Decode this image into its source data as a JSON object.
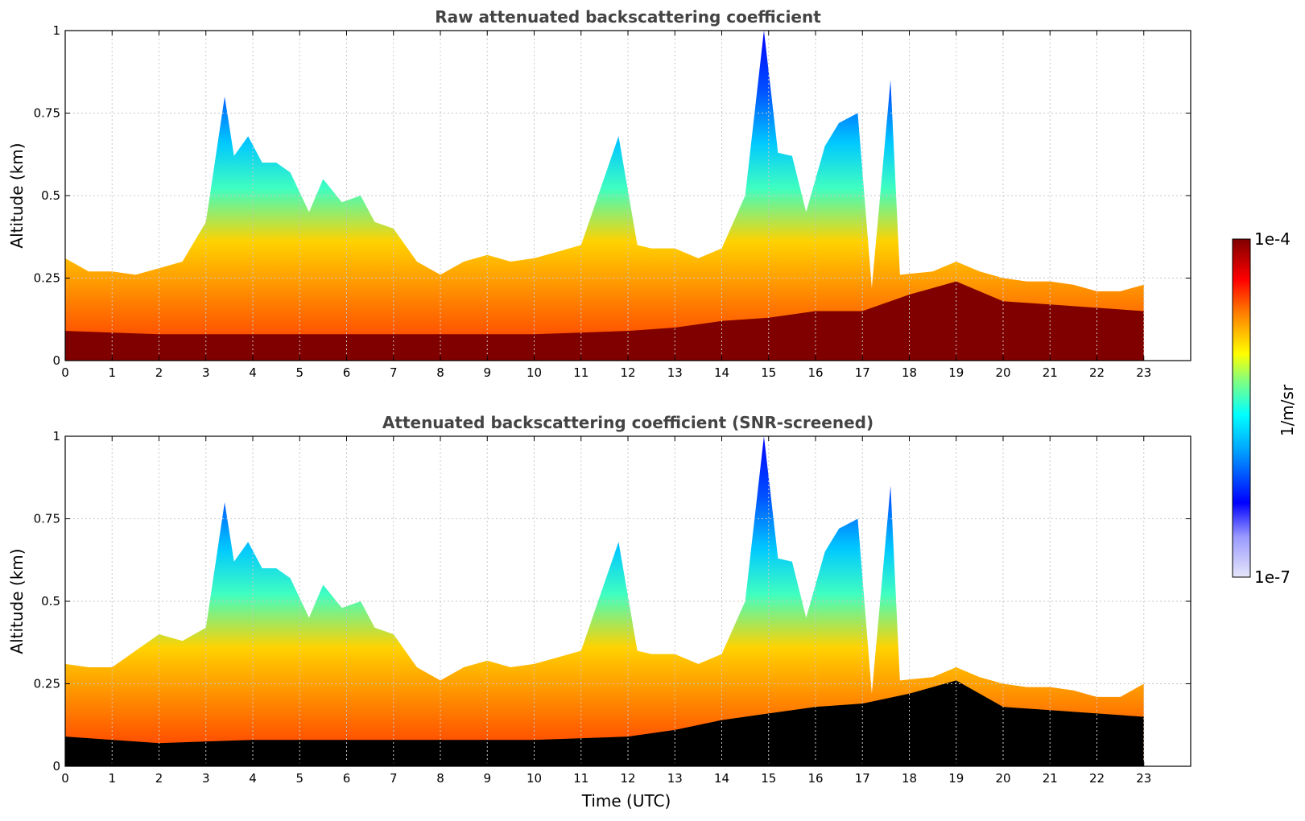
{
  "chart_data": [
    {
      "type": "heatmap",
      "title": "Raw attenuated backscattering coefficient",
      "xlabel": "",
      "ylabel": "Altitude (km)",
      "xlim": [
        0,
        24
      ],
      "ylim": [
        0,
        1
      ],
      "x_ticks": [
        "0",
        "1",
        "2",
        "3",
        "4",
        "5",
        "6",
        "7",
        "8",
        "9",
        "10",
        "11",
        "12",
        "13",
        "14",
        "15",
        "16",
        "17",
        "18",
        "19",
        "20",
        "21",
        "22",
        "23"
      ],
      "y_ticks": [
        "0",
        "0.25",
        "0.5",
        "0.75",
        "1"
      ],
      "grid": true,
      "data_end_time": 23,
      "cloud_top_profile": [
        [
          0,
          0.31
        ],
        [
          0.5,
          0.27
        ],
        [
          1,
          0.27
        ],
        [
          1.5,
          0.26
        ],
        [
          2,
          0.28
        ],
        [
          2.5,
          0.3
        ],
        [
          3,
          0.42
        ],
        [
          3.4,
          0.8
        ],
        [
          3.6,
          0.62
        ],
        [
          3.9,
          0.68
        ],
        [
          4.2,
          0.6
        ],
        [
          4.5,
          0.6
        ],
        [
          4.8,
          0.57
        ],
        [
          5.2,
          0.45
        ],
        [
          5.5,
          0.55
        ],
        [
          5.9,
          0.48
        ],
        [
          6.3,
          0.5
        ],
        [
          6.6,
          0.42
        ],
        [
          7,
          0.4
        ],
        [
          7.5,
          0.3
        ],
        [
          8,
          0.26
        ],
        [
          8.5,
          0.3
        ],
        [
          9,
          0.32
        ],
        [
          9.5,
          0.3
        ],
        [
          10,
          0.31
        ],
        [
          10.5,
          0.33
        ],
        [
          11,
          0.35
        ],
        [
          11.8,
          0.68
        ],
        [
          12.2,
          0.35
        ],
        [
          12.5,
          0.34
        ],
        [
          13,
          0.34
        ],
        [
          13.5,
          0.31
        ],
        [
          14,
          0.34
        ],
        [
          14.5,
          0.5
        ],
        [
          14.9,
          1.0
        ],
        [
          15.2,
          0.63
        ],
        [
          15.5,
          0.62
        ],
        [
          15.8,
          0.45
        ],
        [
          16.2,
          0.65
        ],
        [
          16.5,
          0.72
        ],
        [
          16.9,
          0.75
        ],
        [
          17.2,
          0.22
        ],
        [
          17.6,
          0.85
        ],
        [
          17.8,
          0.26
        ],
        [
          18.5,
          0.27
        ],
        [
          19,
          0.3
        ],
        [
          19.5,
          0.27
        ],
        [
          20,
          0.25
        ],
        [
          20.5,
          0.24
        ],
        [
          21,
          0.24
        ],
        [
          21.5,
          0.23
        ],
        [
          22,
          0.21
        ],
        [
          22.5,
          0.21
        ],
        [
          23,
          0.23
        ]
      ],
      "saturated_layer_top": [
        [
          0,
          0.09
        ],
        [
          2,
          0.08
        ],
        [
          4,
          0.08
        ],
        [
          6,
          0.08
        ],
        [
          8,
          0.08
        ],
        [
          10,
          0.08
        ],
        [
          12,
          0.09
        ],
        [
          13,
          0.1
        ],
        [
          14,
          0.12
        ],
        [
          15,
          0.13
        ],
        [
          16,
          0.15
        ],
        [
          17,
          0.15
        ],
        [
          18,
          0.2
        ],
        [
          19,
          0.24
        ],
        [
          20,
          0.18
        ],
        [
          21,
          0.17
        ],
        [
          22,
          0.16
        ],
        [
          23,
          0.15
        ]
      ]
    },
    {
      "type": "heatmap",
      "title": "Attenuated backscattering coefficient (SNR-screened)",
      "xlabel": "Time (UTC)",
      "ylabel": "Altitude (km)",
      "xlim": [
        0,
        24
      ],
      "ylim": [
        0,
        1
      ],
      "x_ticks": [
        "0",
        "1",
        "2",
        "3",
        "4",
        "5",
        "6",
        "7",
        "8",
        "9",
        "10",
        "11",
        "12",
        "13",
        "14",
        "15",
        "16",
        "17",
        "18",
        "19",
        "20",
        "21",
        "22",
        "23"
      ],
      "y_ticks": [
        "0",
        "0.25",
        "0.5",
        "0.75",
        "1"
      ],
      "grid": true,
      "data_end_time": 23,
      "cloud_top_profile": [
        [
          0,
          0.31
        ],
        [
          0.5,
          0.3
        ],
        [
          1,
          0.3
        ],
        [
          1.5,
          0.35
        ],
        [
          2,
          0.4
        ],
        [
          2.5,
          0.38
        ],
        [
          3,
          0.42
        ],
        [
          3.4,
          0.8
        ],
        [
          3.6,
          0.62
        ],
        [
          3.9,
          0.68
        ],
        [
          4.2,
          0.6
        ],
        [
          4.5,
          0.6
        ],
        [
          4.8,
          0.57
        ],
        [
          5.2,
          0.45
        ],
        [
          5.5,
          0.55
        ],
        [
          5.9,
          0.48
        ],
        [
          6.3,
          0.5
        ],
        [
          6.6,
          0.42
        ],
        [
          7,
          0.4
        ],
        [
          7.5,
          0.3
        ],
        [
          8,
          0.26
        ],
        [
          8.5,
          0.3
        ],
        [
          9,
          0.32
        ],
        [
          9.5,
          0.3
        ],
        [
          10,
          0.31
        ],
        [
          10.5,
          0.33
        ],
        [
          11,
          0.35
        ],
        [
          11.8,
          0.68
        ],
        [
          12.2,
          0.35
        ],
        [
          12.5,
          0.34
        ],
        [
          13,
          0.34
        ],
        [
          13.5,
          0.31
        ],
        [
          14,
          0.34
        ],
        [
          14.5,
          0.5
        ],
        [
          14.9,
          1.0
        ],
        [
          15.2,
          0.63
        ],
        [
          15.5,
          0.62
        ],
        [
          15.8,
          0.45
        ],
        [
          16.2,
          0.65
        ],
        [
          16.5,
          0.72
        ],
        [
          16.9,
          0.75
        ],
        [
          17.2,
          0.22
        ],
        [
          17.6,
          0.85
        ],
        [
          17.8,
          0.26
        ],
        [
          18.5,
          0.27
        ],
        [
          19,
          0.3
        ],
        [
          19.5,
          0.27
        ],
        [
          20,
          0.25
        ],
        [
          20.5,
          0.24
        ],
        [
          21,
          0.24
        ],
        [
          21.5,
          0.23
        ],
        [
          22,
          0.21
        ],
        [
          22.5,
          0.21
        ],
        [
          23,
          0.25
        ]
      ],
      "saturated_layer_top": [
        [
          0,
          0.09
        ],
        [
          2,
          0.07
        ],
        [
          4,
          0.08
        ],
        [
          6,
          0.08
        ],
        [
          8,
          0.08
        ],
        [
          10,
          0.08
        ],
        [
          12,
          0.09
        ],
        [
          13,
          0.11
        ],
        [
          14,
          0.14
        ],
        [
          15,
          0.16
        ],
        [
          16,
          0.18
        ],
        [
          17,
          0.19
        ],
        [
          18,
          0.22
        ],
        [
          19,
          0.26
        ],
        [
          20,
          0.18
        ],
        [
          21,
          0.17
        ],
        [
          22,
          0.16
        ],
        [
          23,
          0.15
        ]
      ]
    }
  ],
  "colorbar": {
    "label": "1/m/sr",
    "max_label": "1e-4",
    "min_label": "1e-7",
    "scale": "log",
    "colors": [
      "#e6e6fa",
      "#0000ff",
      "#00ffff",
      "#ffff00",
      "#ff0000",
      "#800000"
    ]
  }
}
